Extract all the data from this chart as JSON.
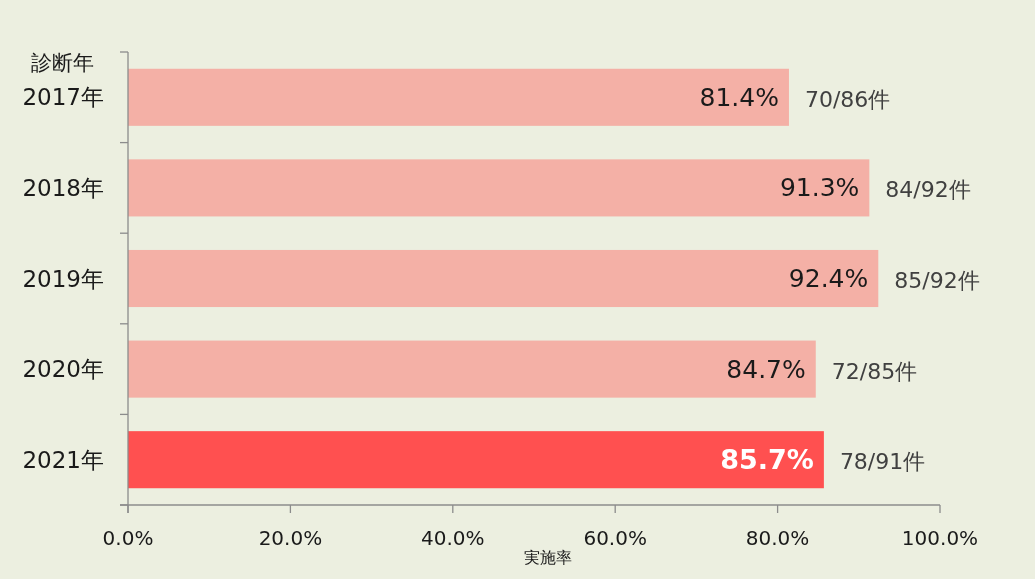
{
  "chart_data": {
    "type": "bar",
    "orientation": "horizontal",
    "ylabel": "診断年",
    "xlabel": "実施率",
    "categories": [
      "2017年",
      "2018年",
      "2019年",
      "2020年",
      "2021年"
    ],
    "values": [
      81.4,
      91.3,
      92.4,
      84.7,
      85.7
    ],
    "colors": [
      "#f4b0a6",
      "#f4b0a6",
      "#f4b0a6",
      "#f4b0a6",
      "#ff5050"
    ],
    "value_labels": [
      "81.4%",
      "91.3%",
      "92.4%",
      "84.7%",
      "85.7%"
    ],
    "xlim": [
      0,
      100
    ],
    "xticks": [
      {
        "value": 0,
        "label": "0.0%"
      },
      {
        "value": 20,
        "label": "20.0%"
      },
      {
        "value": 40,
        "label": "40.0%"
      },
      {
        "value": 60,
        "label": "60.0%"
      },
      {
        "value": 80,
        "label": "80.0%"
      },
      {
        "value": 100,
        "label": "100.0%"
      }
    ],
    "annotations": [
      {
        "text": "70/86件",
        "x": 81.4,
        "y": "2017年"
      },
      {
        "text": "84/92件",
        "x": 91.3,
        "y": "2018年"
      },
      {
        "text": "85/92件",
        "x": 92.4,
        "y": "2019年"
      },
      {
        "text": "72/85件",
        "x": 84.7,
        "y": "2020年"
      },
      {
        "text": "78/91件",
        "x": 85.7,
        "y": "2021年"
      }
    ]
  }
}
